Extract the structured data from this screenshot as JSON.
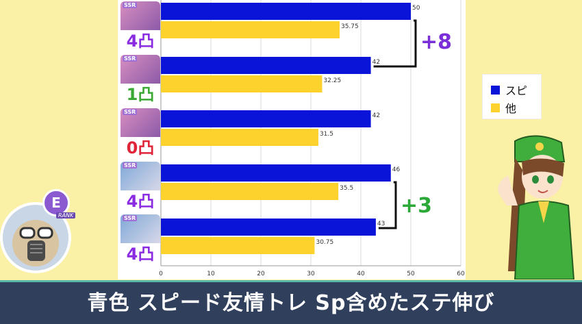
{
  "chart_data": {
    "type": "bar",
    "orientation": "horizontal",
    "groups": 5,
    "series": [
      {
        "name": "スピ",
        "color": "#0a14d8",
        "values": [
          50,
          42,
          42,
          46,
          43
        ]
      },
      {
        "name": "他",
        "color": "#fdd22c",
        "values": [
          35.75,
          32.25,
          31.5,
          35.5,
          30.75
        ]
      }
    ],
    "data_labels": {
      "blue": [
        "50",
        "42",
        "42",
        "46",
        "43"
      ],
      "yellow": [
        "35.75",
        "32.25",
        "31.5",
        "35.5",
        "30.75"
      ]
    },
    "xlim": [
      0,
      60
    ],
    "x_ticks": [
      "0",
      "10",
      "20",
      "30",
      "40",
      "50",
      "60"
    ],
    "grid": true,
    "legend_placement": "right"
  },
  "legend": [
    {
      "label": "スピ",
      "color": "#0a14d8"
    },
    {
      "label": "他",
      "color": "#fdd22c"
    }
  ],
  "cards": [
    {
      "rarity": "SSR",
      "limit_break": "4凸",
      "color": "#8a2be2"
    },
    {
      "rarity": "SSR",
      "limit_break": "1凸",
      "color": "#3aa832"
    },
    {
      "rarity": "SSR",
      "limit_break": "0凸",
      "color": "#e0243a"
    },
    {
      "rarity": "SSR",
      "limit_break": "4凸",
      "color": "#8a2be2"
    },
    {
      "rarity": "SSR",
      "limit_break": "4凸",
      "color": "#8a2be2"
    }
  ],
  "annotations": [
    {
      "text": "+8",
      "color": "#7a2fd8"
    },
    {
      "text": "+3",
      "color": "#2aa838"
    }
  ],
  "rank": {
    "letter": "E",
    "label": "RANK"
  },
  "caption": "青色 スピード友情トレ Sp含めたステ伸び"
}
